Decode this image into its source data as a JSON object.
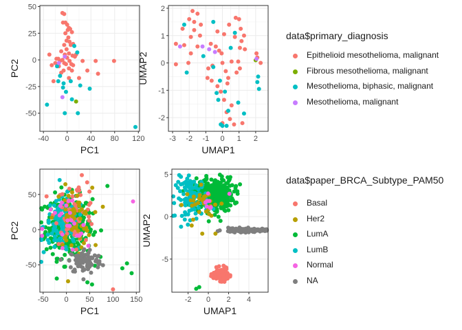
{
  "colors": {
    "epithelioid": "#F8766D",
    "fibrous": "#7CAE00",
    "biphasic": "#00BFC4",
    "meso": "#C77CFF",
    "basal": "#F8766D",
    "her2": "#B79F00",
    "luma": "#00BA38",
    "lumb": "#00BFC4",
    "normal": "#F564E3",
    "na": "#7F7F7F"
  },
  "legend_top": {
    "title": "data$primary_diagnosis",
    "items": [
      {
        "label": "Epithelioid mesothelioma, malignant",
        "color": "#F8766D"
      },
      {
        "label": "Fibrous mesothelioma, malignant",
        "color": "#7CAE00"
      },
      {
        "label": "Mesothelioma, biphasic, malignant",
        "color": "#00BFC4"
      },
      {
        "label": "Mesothelioma, malignant",
        "color": "#C77CFF"
      }
    ]
  },
  "legend_bottom": {
    "title": "data$paper_BRCA_Subtype_PAM50",
    "items": [
      {
        "label": "Basal",
        "color": "#F8766D"
      },
      {
        "label": "Her2",
        "color": "#B79F00"
      },
      {
        "label": "LumA",
        "color": "#00BA38"
      },
      {
        "label": "LumB",
        "color": "#00BFC4"
      },
      {
        "label": "Normal",
        "color": "#F564E3"
      },
      {
        "label": "NA",
        "color": "#7F7F7F"
      }
    ]
  },
  "chart_data": [
    {
      "type": "scatter",
      "id": "meso-pca",
      "xlabel": "PC1",
      "ylabel": "PC2",
      "xlim": [
        -46,
        122
      ],
      "ylim": [
        -67,
        51
      ],
      "xticks": [
        -40,
        0,
        40,
        80,
        120
      ],
      "yticks": [
        -50,
        -25,
        0,
        25,
        50
      ],
      "grid": true,
      "series": [
        {
          "name": "Epithelioid mesothelioma, malignant",
          "color": "#F8766D",
          "points": [
            [
              -8,
              44
            ],
            [
              -5,
              43
            ],
            [
              -3,
              35
            ],
            [
              -7,
              35
            ],
            [
              0,
              33
            ],
            [
              3,
              30
            ],
            [
              5,
              29
            ],
            [
              1,
              28
            ],
            [
              8,
              26
            ],
            [
              -3,
              25
            ],
            [
              2,
              21
            ],
            [
              4,
              17
            ],
            [
              10,
              15
            ],
            [
              6,
              14
            ],
            [
              -5,
              14
            ],
            [
              -10,
              8
            ],
            [
              -1,
              10
            ],
            [
              3,
              6
            ],
            [
              -4,
              5
            ],
            [
              9,
              4
            ],
            [
              13,
              3
            ],
            [
              0,
              2
            ],
            [
              -15,
              1
            ],
            [
              -18,
              1
            ],
            [
              -12,
              -1
            ],
            [
              -8,
              0
            ],
            [
              4,
              -1
            ],
            [
              -26,
              -5
            ],
            [
              -2,
              -4
            ],
            [
              7,
              -4
            ],
            [
              -20,
              -3
            ],
            [
              3,
              -8
            ],
            [
              -14,
              -6
            ],
            [
              -6,
              -10
            ],
            [
              8,
              -10
            ],
            [
              -10,
              -12
            ],
            [
              3,
              -17
            ],
            [
              26,
              -1
            ],
            [
              48,
              -1
            ],
            [
              79,
              -1
            ],
            [
              20,
              -17
            ],
            [
              52,
              -13
            ],
            [
              -23,
              -20
            ],
            [
              34,
              -10
            ],
            [
              -5,
              -3
            ],
            [
              10,
              -5
            ],
            [
              15,
              5
            ],
            [
              -30,
              5
            ],
            [
              -1,
              18
            ]
          ]
        },
        {
          "name": "Fibrous mesothelioma, malignant",
          "color": "#7CAE00",
          "points": [
            [
              15,
              -39
            ]
          ]
        },
        {
          "name": "Mesothelioma, biphasic, malignant",
          "color": "#00BFC4",
          "points": [
            [
              12,
              13
            ],
            [
              17,
              7
            ],
            [
              -17,
              -6
            ],
            [
              -15,
              -20
            ],
            [
              -6,
              -22
            ],
            [
              -34,
              -42
            ],
            [
              -7,
              -26
            ],
            [
              -4,
              -50
            ],
            [
              6,
              -20
            ],
            [
              22,
              -24
            ],
            [
              8,
              -37
            ],
            [
              18,
              -50
            ],
            [
              38,
              -27
            ],
            [
              115,
              -63
            ],
            [
              -2,
              -30
            ],
            [
              -12,
              -15
            ]
          ]
        },
        {
          "name": "Mesothelioma, malignant",
          "color": "#C77CFF",
          "points": [
            [
              -8,
              -35
            ],
            [
              -14,
              -3
            ],
            [
              -4,
              3
            ]
          ]
        }
      ]
    },
    {
      "type": "scatter",
      "id": "meso-umap",
      "xlabel": "UMAP1",
      "ylabel": "UMAP2",
      "xlim": [
        -3.25,
        2.75
      ],
      "ylim": [
        -2.5,
        2.1
      ],
      "xticks": [
        -3,
        -2,
        -1,
        0,
        1,
        2
      ],
      "yticks": [
        -2,
        -1,
        0,
        1,
        2
      ],
      "grid": true,
      "series": [
        {
          "name": "Epithelioid mesothelioma, malignant",
          "color": "#F8766D",
          "points": [
            [
              -1.8,
              1.9
            ],
            [
              -1.5,
              1.8
            ],
            [
              -2.0,
              1.6
            ],
            [
              -1.7,
              1.5
            ],
            [
              -1.3,
              1.4
            ],
            [
              -2.4,
              1.25
            ],
            [
              -1.7,
              1.2
            ],
            [
              -1.35,
              1.0
            ],
            [
              -1.9,
              0.95
            ],
            [
              -2.8,
              0.7
            ],
            [
              -2.3,
              0.65
            ],
            [
              -1.5,
              0.6
            ],
            [
              -1.9,
              0.35
            ],
            [
              -0.7,
              0.7
            ],
            [
              -0.3,
              1.15
            ],
            [
              0.1,
              1.05
            ],
            [
              0.4,
              1.4
            ],
            [
              0.8,
              1.65
            ],
            [
              1.0,
              1.6
            ],
            [
              1.1,
              1.25
            ],
            [
              0.75,
              0.95
            ],
            [
              1.3,
              1.0
            ],
            [
              1.15,
              0.8
            ],
            [
              -0.4,
              0.6
            ],
            [
              -0.2,
              0.45
            ],
            [
              -0.05,
              0.35
            ],
            [
              1.05,
              0.55
            ],
            [
              1.35,
              0.5
            ],
            [
              2.05,
              0.35
            ],
            [
              2.1,
              0.2
            ],
            [
              2.3,
              0.0
            ],
            [
              0.0,
              0.0
            ],
            [
              0.55,
              0.05
            ],
            [
              0.95,
              0.05
            ],
            [
              -0.6,
              -0.1
            ],
            [
              -2.05,
              0.0
            ],
            [
              -2.8,
              -0.05
            ],
            [
              -0.85,
              -0.2
            ],
            [
              0.2,
              -0.3
            ],
            [
              0.85,
              -0.35
            ],
            [
              1.05,
              -0.2
            ],
            [
              -0.9,
              -0.55
            ],
            [
              -0.65,
              -0.65
            ],
            [
              0.35,
              -0.55
            ],
            [
              -0.3,
              -0.85
            ],
            [
              -0.1,
              -1.05
            ],
            [
              0.1,
              -1.35
            ],
            [
              0.55,
              -1.55
            ],
            [
              0.25,
              -1.8
            ],
            [
              0.45,
              -2.05
            ],
            [
              0.7,
              -2.25
            ],
            [
              0.0,
              -2.2
            ],
            [
              1.2,
              -2.2
            ],
            [
              0.3,
              -0.75
            ]
          ]
        },
        {
          "name": "Fibrous mesothelioma, malignant",
          "color": "#7CAE00",
          "points": [
            [
              2.0,
              0.1
            ]
          ]
        },
        {
          "name": "Mesothelioma, biphasic, malignant",
          "color": "#00BFC4",
          "points": [
            [
              -2.3,
              1.4
            ],
            [
              -0.55,
              1.5
            ],
            [
              0.75,
              1.1
            ],
            [
              0.5,
              0.55
            ],
            [
              -1.15,
              0.25
            ],
            [
              -2.15,
              -0.35
            ],
            [
              -0.55,
              -0.15
            ],
            [
              -0.15,
              -0.65
            ],
            [
              2.1,
              -0.7
            ],
            [
              2.15,
              -0.5
            ],
            [
              2.2,
              -0.95
            ],
            [
              0.15,
              -1.05
            ],
            [
              -0.35,
              -1.1
            ],
            [
              0.95,
              -1.45
            ],
            [
              0.35,
              -1.75
            ],
            [
              1.3,
              -1.85
            ],
            [
              0.0,
              -2.3
            ],
            [
              -0.1,
              -2.25
            ],
            [
              0.25,
              -2.3
            ],
            [
              -0.25,
              -1.35
            ]
          ]
        },
        {
          "name": "Mesothelioma, malignant",
          "color": "#C77CFF",
          "points": [
            [
              -1.2,
              0.6
            ],
            [
              -0.8,
              0.5
            ],
            [
              -0.45,
              0.4
            ],
            [
              -2.55,
              0.6
            ],
            [
              2.05,
              0.15
            ]
          ]
        }
      ]
    },
    {
      "type": "scatter",
      "id": "brca-pca",
      "xlabel": "PC1",
      "ylabel": "PC2",
      "xlim": [
        -57,
        157
      ],
      "ylim": [
        -89,
        86
      ],
      "xticks": [
        -50,
        0,
        50,
        100,
        150
      ],
      "yticks": [
        50,
        0,
        -50
      ],
      "grid": true,
      "clusters": [
        {
          "name": "LumA",
          "color": "#00BA38",
          "cx": 5,
          "cy": 5,
          "sx": 25,
          "sy": 22,
          "n": 320
        },
        {
          "name": "LumB",
          "color": "#00BFC4",
          "cx": -5,
          "cy": 5,
          "sx": 22,
          "sy": 20,
          "n": 140
        },
        {
          "name": "Basal",
          "color": "#F8766D",
          "cx": 20,
          "cy": 25,
          "sx": 22,
          "sy": 22,
          "n": 60
        },
        {
          "name": "Her2",
          "color": "#B79F00",
          "cx": 15,
          "cy": 15,
          "sx": 20,
          "sy": 22,
          "n": 55
        },
        {
          "name": "Normal",
          "color": "#F564E3",
          "cx": 0,
          "cy": 0,
          "sx": 25,
          "sy": 25,
          "n": 25
        },
        {
          "name": "NA",
          "color": "#7F7F7F",
          "cx": 40,
          "cy": -45,
          "sx": 18,
          "sy": 9,
          "n": 90
        }
      ],
      "outliers": [
        {
          "x": 143,
          "y": 40,
          "color": "#F564E3"
        },
        {
          "x": 140,
          "y": -62,
          "color": "#00BA38"
        },
        {
          "x": 130,
          "y": -48,
          "color": "#00BA38"
        },
        {
          "x": 120,
          "y": -55,
          "color": "#00BA38"
        },
        {
          "x": 100,
          "y": -85,
          "color": "#F8766D"
        },
        {
          "x": 88,
          "y": 62,
          "color": "#00BA38"
        },
        {
          "x": 55,
          "y": -78,
          "color": "#00BA38"
        },
        {
          "x": 45,
          "y": -75,
          "color": "#00BA38"
        }
      ]
    },
    {
      "type": "scatter",
      "id": "brca-umap",
      "xlabel": "UMAP1",
      "ylabel": "UMAP2",
      "xlim": [
        -3.6,
        5.9
      ],
      "ylim": [
        -8.9,
        5.6
      ],
      "xticks": [
        -2,
        0,
        2,
        4
      ],
      "yticks": [
        5,
        0,
        -5
      ],
      "grid": true,
      "clusters": [
        {
          "name": "LumA",
          "color": "#00BA38",
          "cx": 0.5,
          "cy": 2.6,
          "sx": 1.0,
          "sy": 1.0,
          "n": 320
        },
        {
          "name": "LumB",
          "color": "#00BFC4",
          "cx": -1.6,
          "cy": 2.2,
          "sx": 0.8,
          "sy": 1.2,
          "n": 110
        },
        {
          "name": "Her2",
          "color": "#B79F00",
          "cx": -0.5,
          "cy": 1.6,
          "sx": 0.9,
          "sy": 0.9,
          "n": 30
        },
        {
          "name": "Normal",
          "color": "#F564E3",
          "cx": 0.5,
          "cy": 1.5,
          "sx": 1.0,
          "sy": 0.9,
          "n": 8
        },
        {
          "name": "Basal",
          "color": "#F8766D",
          "cx": 1.2,
          "cy": -6.8,
          "sx": 0.35,
          "sy": 0.35,
          "n": 150
        },
        {
          "name": "NA",
          "color": "#7F7F7F",
          "cx": 3.6,
          "cy": -1.6,
          "sx": 1.1,
          "sy": 0.12,
          "n": 110
        }
      ],
      "outliers": [
        {
          "x": -0.9,
          "y": -8.3,
          "color": "#00BA38"
        },
        {
          "x": -1.2,
          "y": -8.5,
          "color": "#00BA38"
        },
        {
          "x": -0.6,
          "y": -2.0,
          "color": "#B79F00"
        },
        {
          "x": 0.7,
          "y": -2.0,
          "color": "#B79F00"
        },
        {
          "x": 1.2,
          "y": -0.5,
          "color": "#00BA38"
        }
      ]
    }
  ]
}
